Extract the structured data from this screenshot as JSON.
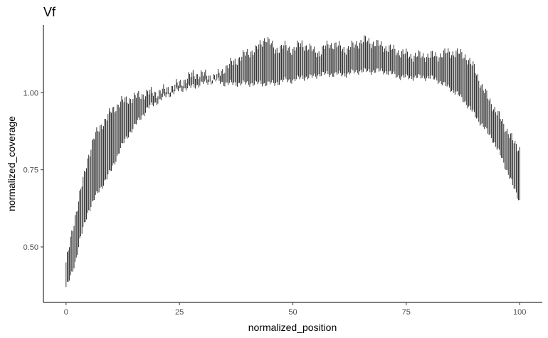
{
  "chart_data": {
    "type": "line",
    "style": "errorbar",
    "title": "Vf",
    "xlabel": "normalized_position",
    "ylabel": "normalized_coverage",
    "xlim": [
      -5,
      105
    ],
    "ylim": [
      0.32,
      1.22
    ],
    "xticks": [
      0,
      25,
      50,
      75,
      100
    ],
    "yticks": [
      0.5,
      0.75,
      1.0
    ],
    "ytick_labels": [
      "0.50",
      "0.75",
      "1.00"
    ],
    "grid": false,
    "series_color": "#000000",
    "series": [
      {
        "x": [
          0,
          1,
          2,
          3,
          4,
          5,
          6,
          8,
          10,
          12,
          14,
          16,
          18,
          20,
          22,
          25,
          28,
          30,
          33,
          35,
          38,
          40,
          42,
          44,
          46,
          48,
          50,
          52,
          54,
          56,
          58,
          60,
          62,
          64,
          66,
          68,
          70,
          72,
          74,
          76,
          78,
          80,
          82,
          84,
          86,
          88,
          90,
          92,
          94,
          96,
          98,
          99,
          100
        ],
        "lower": [
          0.37,
          0.4,
          0.45,
          0.52,
          0.57,
          0.62,
          0.65,
          0.7,
          0.75,
          0.82,
          0.87,
          0.91,
          0.95,
          0.97,
          0.99,
          1.01,
          1.02,
          1.03,
          1.04,
          1.03,
          1.03,
          1.03,
          1.03,
          1.03,
          1.03,
          1.04,
          1.04,
          1.05,
          1.05,
          1.06,
          1.06,
          1.06,
          1.06,
          1.07,
          1.07,
          1.07,
          1.07,
          1.06,
          1.05,
          1.05,
          1.05,
          1.05,
          1.04,
          1.02,
          1.0,
          0.97,
          0.93,
          0.89,
          0.85,
          0.79,
          0.72,
          0.68,
          0.65
        ],
        "upper": [
          0.45,
          0.52,
          0.6,
          0.67,
          0.73,
          0.8,
          0.85,
          0.9,
          0.94,
          0.97,
          0.98,
          0.99,
          1.0,
          1.0,
          1.01,
          1.03,
          1.06,
          1.06,
          1.05,
          1.08,
          1.11,
          1.13,
          1.14,
          1.18,
          1.14,
          1.15,
          1.14,
          1.16,
          1.14,
          1.13,
          1.16,
          1.15,
          1.14,
          1.16,
          1.17,
          1.16,
          1.15,
          1.14,
          1.13,
          1.12,
          1.12,
          1.12,
          1.12,
          1.13,
          1.13,
          1.12,
          1.08,
          1.01,
          0.96,
          0.91,
          0.86,
          0.83,
          0.82
        ]
      }
    ]
  }
}
